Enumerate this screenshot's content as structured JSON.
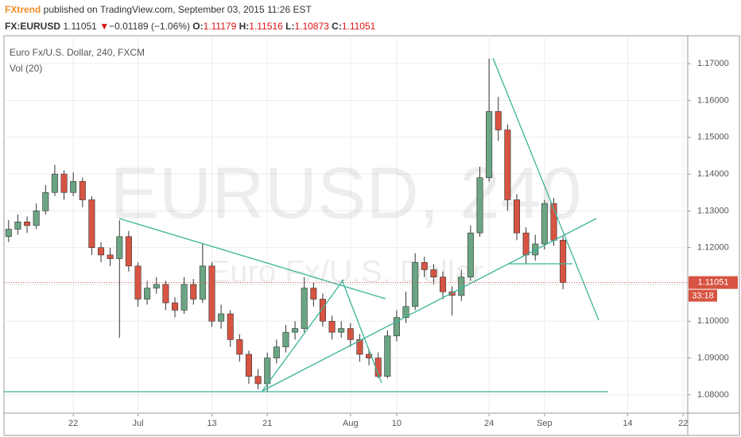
{
  "header": {
    "author": "FXtrend",
    "published": " published on TradingView.com, September 03, 2015 11:26 EST",
    "symbol": "FX:EURUSD",
    "last": 1.11051,
    "arrow": "▼",
    "change": "−0.01189 (−1.06%)",
    "o_label": "O:",
    "o": 1.11179,
    "h_label": "H:",
    "h": 1.11516,
    "l_label": "L:",
    "l": 1.10873,
    "c_label": "C:",
    "c": 1.11051
  },
  "chart_data": {
    "type": "candlestick",
    "title": "Euro Fx/U.S. Dollar, 240, FXCM",
    "subtitle": "Vol (20)",
    "watermark": "EURUSD, 240",
    "watermark_subtitle": "Euro Fx/U.S. Dollar",
    "countdown": "33:18",
    "up_color": "#6ba583",
    "down_color": "#d75442",
    "grid": true,
    "ylim": [
      1.075,
      1.1776
    ],
    "yticks": [
      {
        "value": 1.08,
        "label": "1.08000"
      },
      {
        "value": 1.09,
        "label": "1.09000"
      },
      {
        "value": 1.1,
        "label": "1.10000"
      },
      {
        "value": 1.11,
        "label": "1.11000"
      },
      {
        "value": 1.12,
        "label": "1.12000"
      },
      {
        "value": 1.13,
        "label": "1.13000"
      },
      {
        "value": 1.14,
        "label": "1.14000"
      },
      {
        "value": 1.15,
        "label": "1.15000"
      },
      {
        "value": 1.16,
        "label": "1.16000"
      },
      {
        "value": 1.17,
        "label": "1.17000"
      }
    ],
    "categories": [
      null,
      null,
      null,
      null,
      null,
      null,
      null,
      "22",
      null,
      null,
      null,
      null,
      null,
      null,
      "Jul",
      null,
      null,
      null,
      null,
      null,
      null,
      null,
      "13",
      null,
      null,
      null,
      null,
      null,
      "21",
      null,
      null,
      null,
      null,
      null,
      null,
      null,
      null,
      "Aug",
      null,
      null,
      null,
      null,
      "10",
      null,
      null,
      null,
      null,
      null,
      null,
      null,
      null,
      null,
      "24",
      null,
      null,
      null,
      null,
      null,
      "Sep",
      null,
      null,
      null,
      null,
      null,
      null,
      null,
      null,
      "14",
      null,
      null,
      null,
      null,
      null,
      "22"
    ],
    "open": [
      1.123,
      1.125,
      1.127,
      1.126,
      1.13,
      1.135,
      1.14,
      1.135,
      1.138,
      1.133,
      1.12,
      1.118,
      1.117,
      1.123,
      1.115,
      1.106,
      1.109,
      1.11,
      1.105,
      1.103,
      1.11,
      1.106,
      1.115,
      1.1,
      1.102,
      1.095,
      1.091,
      1.085,
      1.083,
      1.09,
      1.093,
      1.097,
      1.098,
      1.109,
      1.106,
      1.1,
      1.097,
      1.098,
      1.095,
      1.091,
      1.09,
      1.085,
      1.096,
      1.101,
      1.104,
      1.116,
      1.114,
      1.112,
      1.108,
      1.107,
      1.112,
      1.124,
      1.139,
      1.157,
      1.152,
      1.133,
      1.124,
      1.118,
      1.121,
      1.132,
      1.122,
      null,
      null,
      null,
      null,
      null,
      null,
      null,
      null,
      null,
      null,
      null,
      null,
      null
    ],
    "high": [
      1.1275,
      1.129,
      1.1285,
      1.132,
      1.137,
      1.1425,
      1.141,
      1.1405,
      1.139,
      1.134,
      1.1215,
      1.12,
      1.1275,
      1.1245,
      1.116,
      1.111,
      1.112,
      1.111,
      1.1065,
      1.112,
      1.1115,
      1.121,
      1.116,
      1.1045,
      1.103,
      1.0965,
      1.092,
      1.087,
      1.0915,
      1.095,
      1.099,
      1.1,
      1.112,
      1.1105,
      1.1075,
      1.1015,
      1.1,
      1.0995,
      1.0965,
      1.0925,
      1.0915,
      1.0975,
      1.103,
      1.108,
      1.1185,
      1.1175,
      1.1155,
      1.1135,
      1.1095,
      1.114,
      1.126,
      1.142,
      1.1714,
      1.161,
      1.1535,
      1.1345,
      1.1255,
      1.1235,
      1.133,
      1.1335,
      1.123,
      null,
      null,
      null,
      null,
      null,
      null,
      null,
      null,
      null,
      null,
      null,
      null,
      null
    ],
    "low": [
      1.1215,
      1.1235,
      1.124,
      1.125,
      1.129,
      1.134,
      1.133,
      1.134,
      1.131,
      1.118,
      1.116,
      1.115,
      1.0955,
      1.1135,
      1.104,
      1.1045,
      1.1075,
      1.103,
      1.101,
      1.102,
      1.1045,
      1.105,
      1.0985,
      1.098,
      1.093,
      1.089,
      1.083,
      1.0815,
      1.0809,
      1.0885,
      1.0915,
      1.095,
      1.097,
      1.104,
      1.0985,
      1.095,
      1.0955,
      1.093,
      1.089,
      1.088,
      1.0845,
      1.0845,
      1.0945,
      1.0995,
      1.103,
      1.112,
      1.11,
      1.106,
      1.1015,
      1.1055,
      1.111,
      1.123,
      1.138,
      1.149,
      1.13,
      1.122,
      1.1155,
      1.1165,
      1.1195,
      1.1205,
      1.1087,
      null,
      null,
      null,
      null,
      null,
      null,
      null,
      null,
      null,
      null,
      null,
      null,
      null
    ],
    "close": [
      1.125,
      1.127,
      1.126,
      1.13,
      1.135,
      1.14,
      1.135,
      1.138,
      1.133,
      1.12,
      1.118,
      1.117,
      1.123,
      1.115,
      1.106,
      1.109,
      1.11,
      1.105,
      1.103,
      1.11,
      1.106,
      1.115,
      1.1,
      1.102,
      1.095,
      1.091,
      1.085,
      1.083,
      1.09,
      1.093,
      1.097,
      1.098,
      1.109,
      1.106,
      1.1,
      1.097,
      1.098,
      1.095,
      1.091,
      1.09,
      1.085,
      1.096,
      1.101,
      1.104,
      1.116,
      1.114,
      1.112,
      1.108,
      1.107,
      1.112,
      1.124,
      1.139,
      1.157,
      1.152,
      1.133,
      1.124,
      1.118,
      1.121,
      1.132,
      1.122,
      1.11051,
      null,
      null,
      null,
      null,
      null,
      null,
      null,
      null,
      null,
      null,
      null,
      null,
      null
    ]
  }
}
